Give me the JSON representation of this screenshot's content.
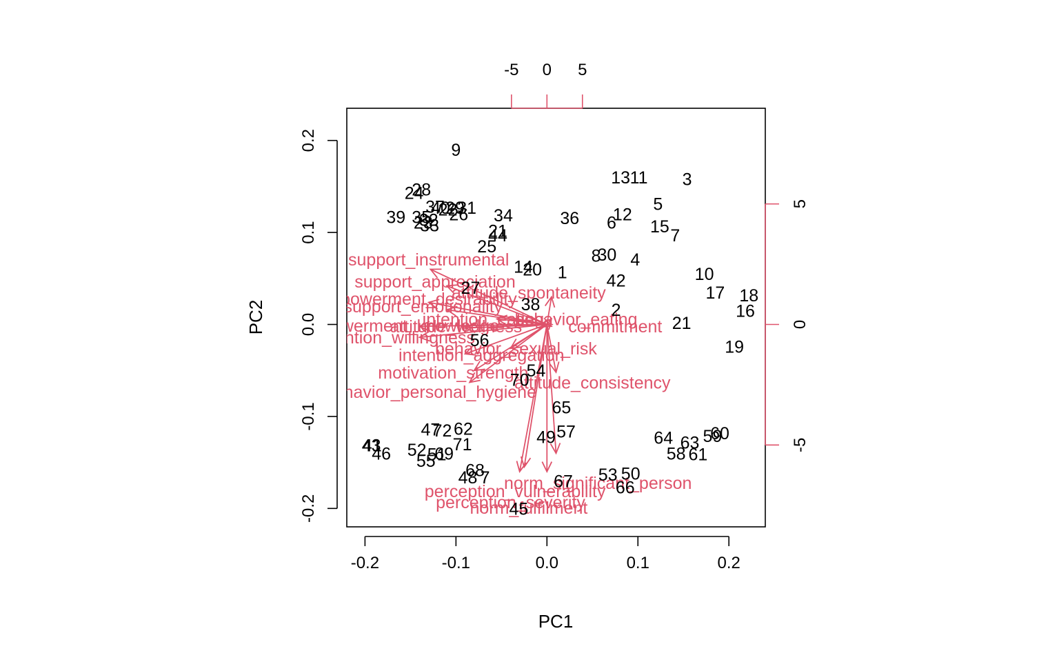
{
  "chart_data": {
    "type": "scatter",
    "title": "",
    "xlabel": "PC1",
    "ylabel": "PC2",
    "xlim": [
      -0.22,
      0.24
    ],
    "ylim": [
      -0.22,
      0.235
    ],
    "x_ticks": [
      -0.2,
      -0.1,
      0.0,
      0.1,
      0.2
    ],
    "x_tick_labels": [
      "-0.2",
      "-0.1",
      "0.0",
      "0.1",
      "0.2"
    ],
    "y_ticks": [
      -0.2,
      -0.1,
      0.0,
      0.1,
      0.2
    ],
    "y_tick_labels": [
      "-0.2",
      "-0.1",
      "0.0",
      "0.1",
      "0.2"
    ],
    "top_axis": {
      "scale_per_unit": 0.0078,
      "ticks": [
        -5,
        0,
        5
      ],
      "tick_labels": [
        "-5",
        "0",
        "5"
      ]
    },
    "right_axis": {
      "scale_per_unit": 0.0262,
      "ticks": [
        5,
        0,
        -5
      ],
      "tick_labels": [
        "5",
        "0",
        "-5"
      ]
    },
    "grid": false,
    "legend": "none",
    "colors": {
      "observations": "#000000",
      "loadings": "#DF536B",
      "frame": "#000000"
    },
    "observations": [
      {
        "label": "9",
        "x": -0.1,
        "y": 0.19
      },
      {
        "label": "13",
        "x": 0.081,
        "y": 0.16
      },
      {
        "label": "11",
        "x": 0.101,
        "y": 0.16
      },
      {
        "label": "3",
        "x": 0.154,
        "y": 0.158
      },
      {
        "label": "24",
        "x": -0.146,
        "y": 0.143
      },
      {
        "label": "28",
        "x": -0.138,
        "y": 0.147
      },
      {
        "label": "37",
        "x": -0.123,
        "y": 0.128
      },
      {
        "label": "40",
        "x": -0.117,
        "y": 0.127
      },
      {
        "label": "29",
        "x": -0.101,
        "y": 0.127
      },
      {
        "label": "31",
        "x": -0.088,
        "y": 0.127
      },
      {
        "label": "22",
        "x": -0.109,
        "y": 0.125
      },
      {
        "label": "26",
        "x": -0.097,
        "y": 0.12
      },
      {
        "label": "34",
        "x": -0.048,
        "y": 0.119
      },
      {
        "label": "5",
        "x": 0.122,
        "y": 0.131
      },
      {
        "label": "12",
        "x": 0.083,
        "y": 0.12
      },
      {
        "label": "36",
        "x": 0.025,
        "y": 0.116
      },
      {
        "label": "6",
        "x": 0.071,
        "y": 0.111
      },
      {
        "label": "15",
        "x": 0.124,
        "y": 0.107
      },
      {
        "label": "7",
        "x": 0.141,
        "y": 0.097
      },
      {
        "label": "39",
        "x": -0.166,
        "y": 0.117
      },
      {
        "label": "35",
        "x": -0.138,
        "y": 0.117
      },
      {
        "label": "32",
        "x": -0.13,
        "y": 0.114
      },
      {
        "label": "23",
        "x": -0.136,
        "y": 0.111
      },
      {
        "label": "33",
        "x": -0.129,
        "y": 0.108
      },
      {
        "label": "21a",
        "x": -0.054,
        "y": 0.102
      },
      {
        "label": "44",
        "x": -0.054,
        "y": 0.097
      },
      {
        "label": "25",
        "x": -0.066,
        "y": 0.085
      },
      {
        "label": "8",
        "x": 0.054,
        "y": 0.075
      },
      {
        "label": "30",
        "x": 0.066,
        "y": 0.076
      },
      {
        "label": "4",
        "x": 0.097,
        "y": 0.071
      },
      {
        "label": "14",
        "x": -0.026,
        "y": 0.063
      },
      {
        "label": "20",
        "x": -0.016,
        "y": 0.06
      },
      {
        "label": "1",
        "x": 0.017,
        "y": 0.057
      },
      {
        "label": "10",
        "x": 0.173,
        "y": 0.055
      },
      {
        "label": "42",
        "x": 0.076,
        "y": 0.048
      },
      {
        "label": "27",
        "x": -0.084,
        "y": 0.04
      },
      {
        "label": "17",
        "x": 0.185,
        "y": 0.035
      },
      {
        "label": "18",
        "x": 0.222,
        "y": 0.032
      },
      {
        "label": "38",
        "x": -0.018,
        "y": 0.022
      },
      {
        "label": "2",
        "x": 0.076,
        "y": 0.016
      },
      {
        "label": "16",
        "x": 0.218,
        "y": 0.015
      },
      {
        "label": "21",
        "x": 0.148,
        "y": 0.002
      },
      {
        "label": "56",
        "x": -0.074,
        "y": -0.017
      },
      {
        "label": "19",
        "x": 0.206,
        "y": -0.024
      },
      {
        "label": "54",
        "x": -0.012,
        "y": -0.05
      },
      {
        "label": "70",
        "x": -0.03,
        "y": -0.06
      },
      {
        "label": "65",
        "x": 0.016,
        "y": -0.09
      },
      {
        "label": "47",
        "x": -0.128,
        "y": -0.114
      },
      {
        "label": "72",
        "x": -0.115,
        "y": -0.115
      },
      {
        "label": "62",
        "x": -0.092,
        "y": -0.113
      },
      {
        "label": "57",
        "x": 0.021,
        "y": -0.116
      },
      {
        "label": "49",
        "x": -0.001,
        "y": -0.122
      },
      {
        "label": "64",
        "x": 0.128,
        "y": -0.123
      },
      {
        "label": "63",
        "x": 0.157,
        "y": -0.128
      },
      {
        "label": "59",
        "x": 0.182,
        "y": -0.121
      },
      {
        "label": "60",
        "x": 0.19,
        "y": -0.118
      },
      {
        "label": "71",
        "x": -0.093,
        "y": -0.13
      },
      {
        "label": "43",
        "x": -0.193,
        "y": -0.131
      },
      {
        "label": "41",
        "x": -0.192,
        "y": -0.131
      },
      {
        "label": "46",
        "x": -0.182,
        "y": -0.14
      },
      {
        "label": "52",
        "x": -0.143,
        "y": -0.136
      },
      {
        "label": "69",
        "x": -0.113,
        "y": -0.14
      },
      {
        "label": "51",
        "x": -0.121,
        "y": -0.141
      },
      {
        "label": "55",
        "x": -0.133,
        "y": -0.148
      },
      {
        "label": "58",
        "x": 0.142,
        "y": -0.14
      },
      {
        "label": "61",
        "x": 0.166,
        "y": -0.141
      },
      {
        "label": "68",
        "x": -0.079,
        "y": -0.158
      },
      {
        "label": "48",
        "x": -0.087,
        "y": -0.166
      },
      {
        "label": "7b",
        "x": -0.068,
        "y": -0.166
      },
      {
        "label": "53",
        "x": 0.067,
        "y": -0.163
      },
      {
        "label": "50",
        "x": 0.092,
        "y": -0.162
      },
      {
        "label": "67",
        "x": 0.018,
        "y": -0.17
      },
      {
        "label": "66",
        "x": 0.086,
        "y": -0.177
      },
      {
        "label": "45",
        "x": -0.031,
        "y": -0.2
      }
    ],
    "observation_display": {
      "21a": "21",
      "7b": "7"
    },
    "loadings": [
      {
        "name": "support_instrumental",
        "x": -0.128,
        "y": 0.06,
        "lx": -0.13,
        "ly": 0.071
      },
      {
        "name": "support_appreciation",
        "x": -0.11,
        "y": 0.042,
        "lx": -0.123,
        "ly": 0.047
      },
      {
        "name": "attitude_spontaneity",
        "x": 0.005,
        "y": 0.03,
        "lx": -0.02,
        "ly": 0.035
      },
      {
        "name": "empowerment_desirability",
        "x": -0.13,
        "y": 0.024,
        "lx": -0.143,
        "ly": 0.028
      },
      {
        "name": "support_emotionality",
        "x": -0.11,
        "y": 0.016,
        "lx": -0.136,
        "ly": 0.02
      },
      {
        "name": "intention_eating",
        "x": -0.055,
        "y": 0.006,
        "lx": -0.07,
        "ly": 0.006
      },
      {
        "name": "behavior_eating",
        "x": 0.005,
        "y": 0.006,
        "lx": 0.032,
        "ly": 0.006
      },
      {
        "name": "empowerment_knowledge",
        "x": -0.14,
        "y": -0.002,
        "lx": -0.163,
        "ly": -0.001
      },
      {
        "name": "attitude_wellness",
        "x": -0.09,
        "y": -0.004,
        "lx": -0.1,
        "ly": -0.002
      },
      {
        "name": "commitment",
        "x": 0.005,
        "y": -0.002,
        "lx": 0.075,
        "ly": -0.002
      },
      {
        "name": "intention_willingness",
        "x": -0.14,
        "y": -0.014,
        "lx": -0.166,
        "ly": -0.014
      },
      {
        "name": "behavior_sexual_risk",
        "x": -0.04,
        "y": -0.026,
        "lx": -0.034,
        "ly": -0.026
      },
      {
        "name": "intention_aggregation",
        "x": -0.09,
        "y": -0.032,
        "lx": -0.072,
        "ly": -0.033
      },
      {
        "name": "motivation_strength",
        "x": -0.08,
        "y": -0.05,
        "lx": -0.103,
        "ly": -0.052
      },
      {
        "name": "attitude_consistency",
        "x": 0.01,
        "y": -0.052,
        "lx": 0.05,
        "ly": -0.063
      },
      {
        "name": "behavior_personal_hygiene",
        "x": -0.085,
        "y": -0.063,
        "lx": -0.128,
        "ly": -0.073
      },
      {
        "name": "norm_significant_person",
        "x": 0.01,
        "y": -0.14,
        "lx": 0.056,
        "ly": -0.172
      },
      {
        "name": "perception_vulnerability",
        "x": -0.025,
        "y": -0.155,
        "lx": -0.035,
        "ly": -0.181
      },
      {
        "name": "perception_severity",
        "x": -0.03,
        "y": -0.16,
        "lx": -0.04,
        "ly": -0.193
      },
      {
        "name": "norm_fulfilment",
        "x": 0.0,
        "y": -0.16,
        "lx": -0.02,
        "ly": -0.199
      }
    ]
  }
}
